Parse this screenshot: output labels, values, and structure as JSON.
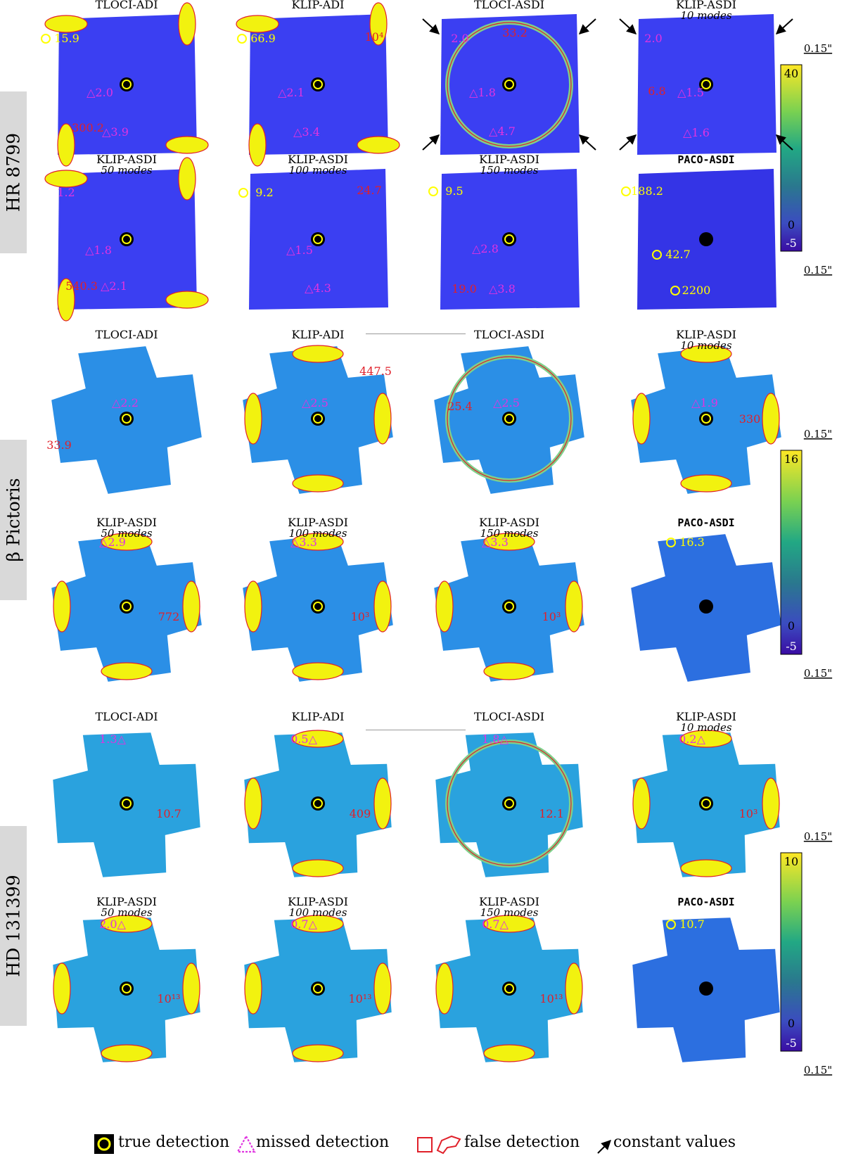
{
  "colors": {
    "hr_background": "#3b3ff2",
    "beta_background": "#2b8fe6",
    "hd_background": "#2aa2de",
    "paco_hr_background": "#3434e6",
    "paco_other_background": "#2c6fe0",
    "arc_fill": "#f2f20f",
    "false_detection": "#e0202a",
    "missed_detection": "#e033e0",
    "true_detection": "#ffff00"
  },
  "rows": [
    {
      "name": "HR 8799",
      "colorbar": {
        "max": "40",
        "zero": "0",
        "min": "-5",
        "scale_top": "0.15\"",
        "scale_bottom": "0.15\""
      },
      "panels": [
        {
          "title": "TLOCI-ADI",
          "subtitle": "",
          "labels": [
            {
              "t": "15.9",
              "c": "true"
            },
            {
              "t": "△2.0",
              "c": "missed"
            },
            {
              "t": "△3.9",
              "c": "missed"
            },
            {
              "t": "300.2",
              "c": "false"
            }
          ]
        },
        {
          "title": "KLIP-ADI",
          "subtitle": "",
          "labels": [
            {
              "t": "66.9",
              "c": "true"
            },
            {
              "t": "△2.1",
              "c": "missed"
            },
            {
              "t": "△3.4",
              "c": "missed"
            },
            {
              "t": "10⁴",
              "c": "false"
            }
          ]
        },
        {
          "title": "TLOCI-ASDI",
          "subtitle": "",
          "labels": [
            {
              "t": "2.0",
              "c": "missed"
            },
            {
              "t": "33.2",
              "c": "false"
            },
            {
              "t": "△1.8",
              "c": "missed"
            },
            {
              "t": "△4.7",
              "c": "missed"
            }
          ]
        },
        {
          "title": "KLIP-ASDI",
          "subtitle": "10 modes",
          "labels": [
            {
              "t": "2.0",
              "c": "missed"
            },
            {
              "t": "6.8",
              "c": "false"
            },
            {
              "t": "△1.5",
              "c": "missed"
            },
            {
              "t": "△1.6",
              "c": "missed"
            }
          ]
        },
        {
          "title": "KLIP-ASDI",
          "subtitle": "50 modes",
          "labels": [
            {
              "t": "1.2",
              "c": "missed"
            },
            {
              "t": "△1.8",
              "c": "missed"
            },
            {
              "t": "540.3",
              "c": "false"
            },
            {
              "t": "△2.1",
              "c": "missed"
            }
          ]
        },
        {
          "title": "KLIP-ASDI",
          "subtitle": "100 modes",
          "labels": [
            {
              "t": "9.2",
              "c": "true"
            },
            {
              "t": "24.7",
              "c": "false"
            },
            {
              "t": "△1.5",
              "c": "missed"
            },
            {
              "t": "△4.3",
              "c": "missed"
            }
          ]
        },
        {
          "title": "KLIP-ASDI",
          "subtitle": "150 modes",
          "labels": [
            {
              "t": "9.5",
              "c": "true"
            },
            {
              "t": "△2.8",
              "c": "missed"
            },
            {
              "t": "19.0",
              "c": "false"
            },
            {
              "t": "△3.8",
              "c": "missed"
            }
          ]
        },
        {
          "title": "PACO-ASDI",
          "subtitle": "",
          "labels": [
            {
              "t": "188.2",
              "c": "true"
            },
            {
              "t": "42.7",
              "c": "true"
            },
            {
              "t": "2200",
              "c": "true"
            }
          ]
        }
      ]
    },
    {
      "name": "β Pictoris",
      "colorbar": {
        "max": "16",
        "zero": "0",
        "min": "-5",
        "scale_top": "0.15\"",
        "scale_bottom": "0.15\""
      },
      "panels": [
        {
          "title": "TLOCI-ADI",
          "subtitle": "",
          "labels": [
            {
              "t": "△2.2",
              "c": "missed"
            },
            {
              "t": "33.9",
              "c": "false"
            }
          ]
        },
        {
          "title": "KLIP-ADI",
          "subtitle": "",
          "labels": [
            {
              "t": "△2.5",
              "c": "missed"
            },
            {
              "t": "447.5",
              "c": "false"
            }
          ]
        },
        {
          "title": "TLOCI-ASDI",
          "subtitle": "",
          "labels": [
            {
              "t": "25.4",
              "c": "false"
            },
            {
              "t": "△2.5",
              "c": "missed"
            }
          ]
        },
        {
          "title": "KLIP-ASDI",
          "subtitle": "10 modes",
          "labels": [
            {
              "t": "△1.9",
              "c": "missed"
            },
            {
              "t": "330",
              "c": "false"
            }
          ]
        },
        {
          "title": "KLIP-ASDI",
          "subtitle": "50 modes",
          "labels": [
            {
              "t": "△2.9",
              "c": "missed"
            },
            {
              "t": "772",
              "c": "false"
            }
          ]
        },
        {
          "title": "KLIP-ASDI",
          "subtitle": "100 modes",
          "labels": [
            {
              "t": "△3.3",
              "c": "missed"
            },
            {
              "t": "10³",
              "c": "false"
            }
          ]
        },
        {
          "title": "KLIP-ASDI",
          "subtitle": "150 modes",
          "labels": [
            {
              "t": "△3.3",
              "c": "missed"
            },
            {
              "t": "10³",
              "c": "false"
            }
          ]
        },
        {
          "title": "PACO-ASDI",
          "subtitle": "",
          "labels": [
            {
              "t": "16.3",
              "c": "true"
            }
          ]
        }
      ]
    },
    {
      "name": "HD 131399",
      "colorbar": {
        "max": "10",
        "zero": "0",
        "min": "-5",
        "scale_top": "0.15\"",
        "scale_bottom": "0.15\""
      },
      "panels": [
        {
          "title": "TLOCI-ADI",
          "subtitle": "",
          "labels": [
            {
              "t": "1.3△",
              "c": "missed"
            },
            {
              "t": "10.7",
              "c": "false"
            }
          ]
        },
        {
          "title": "KLIP-ADI",
          "subtitle": "",
          "labels": [
            {
              "t": "0.5△",
              "c": "missed"
            },
            {
              "t": "409",
              "c": "false"
            }
          ]
        },
        {
          "title": "TLOCI-ASDI",
          "subtitle": "",
          "labels": [
            {
              "t": "1.8△",
              "c": "missed"
            },
            {
              "t": "12.1",
              "c": "false"
            }
          ]
        },
        {
          "title": "KLIP-ASDI",
          "subtitle": "10 modes",
          "labels": [
            {
              "t": "0.2△",
              "c": "missed"
            },
            {
              "t": "10³",
              "c": "false"
            }
          ]
        },
        {
          "title": "KLIP-ASDI",
          "subtitle": "50 modes",
          "labels": [
            {
              "t": "2.0△",
              "c": "missed"
            },
            {
              "t": "10¹³",
              "c": "false"
            }
          ]
        },
        {
          "title": "KLIP-ASDI",
          "subtitle": "100 modes",
          "labels": [
            {
              "t": "0.7△",
              "c": "missed"
            },
            {
              "t": "10¹³",
              "c": "false"
            }
          ]
        },
        {
          "title": "KLIP-ASDI",
          "subtitle": "150 modes",
          "labels": [
            {
              "t": "0.7△",
              "c": "missed"
            },
            {
              "t": "10¹³",
              "c": "false"
            }
          ]
        },
        {
          "title": "PACO-ASDI",
          "subtitle": "",
          "labels": [
            {
              "t": "10.7",
              "c": "true"
            }
          ]
        }
      ]
    }
  ],
  "legend": {
    "true_detection": "true detection",
    "missed_detection": "missed detection",
    "false_detection": "false detection",
    "constant_values": "constant values"
  }
}
